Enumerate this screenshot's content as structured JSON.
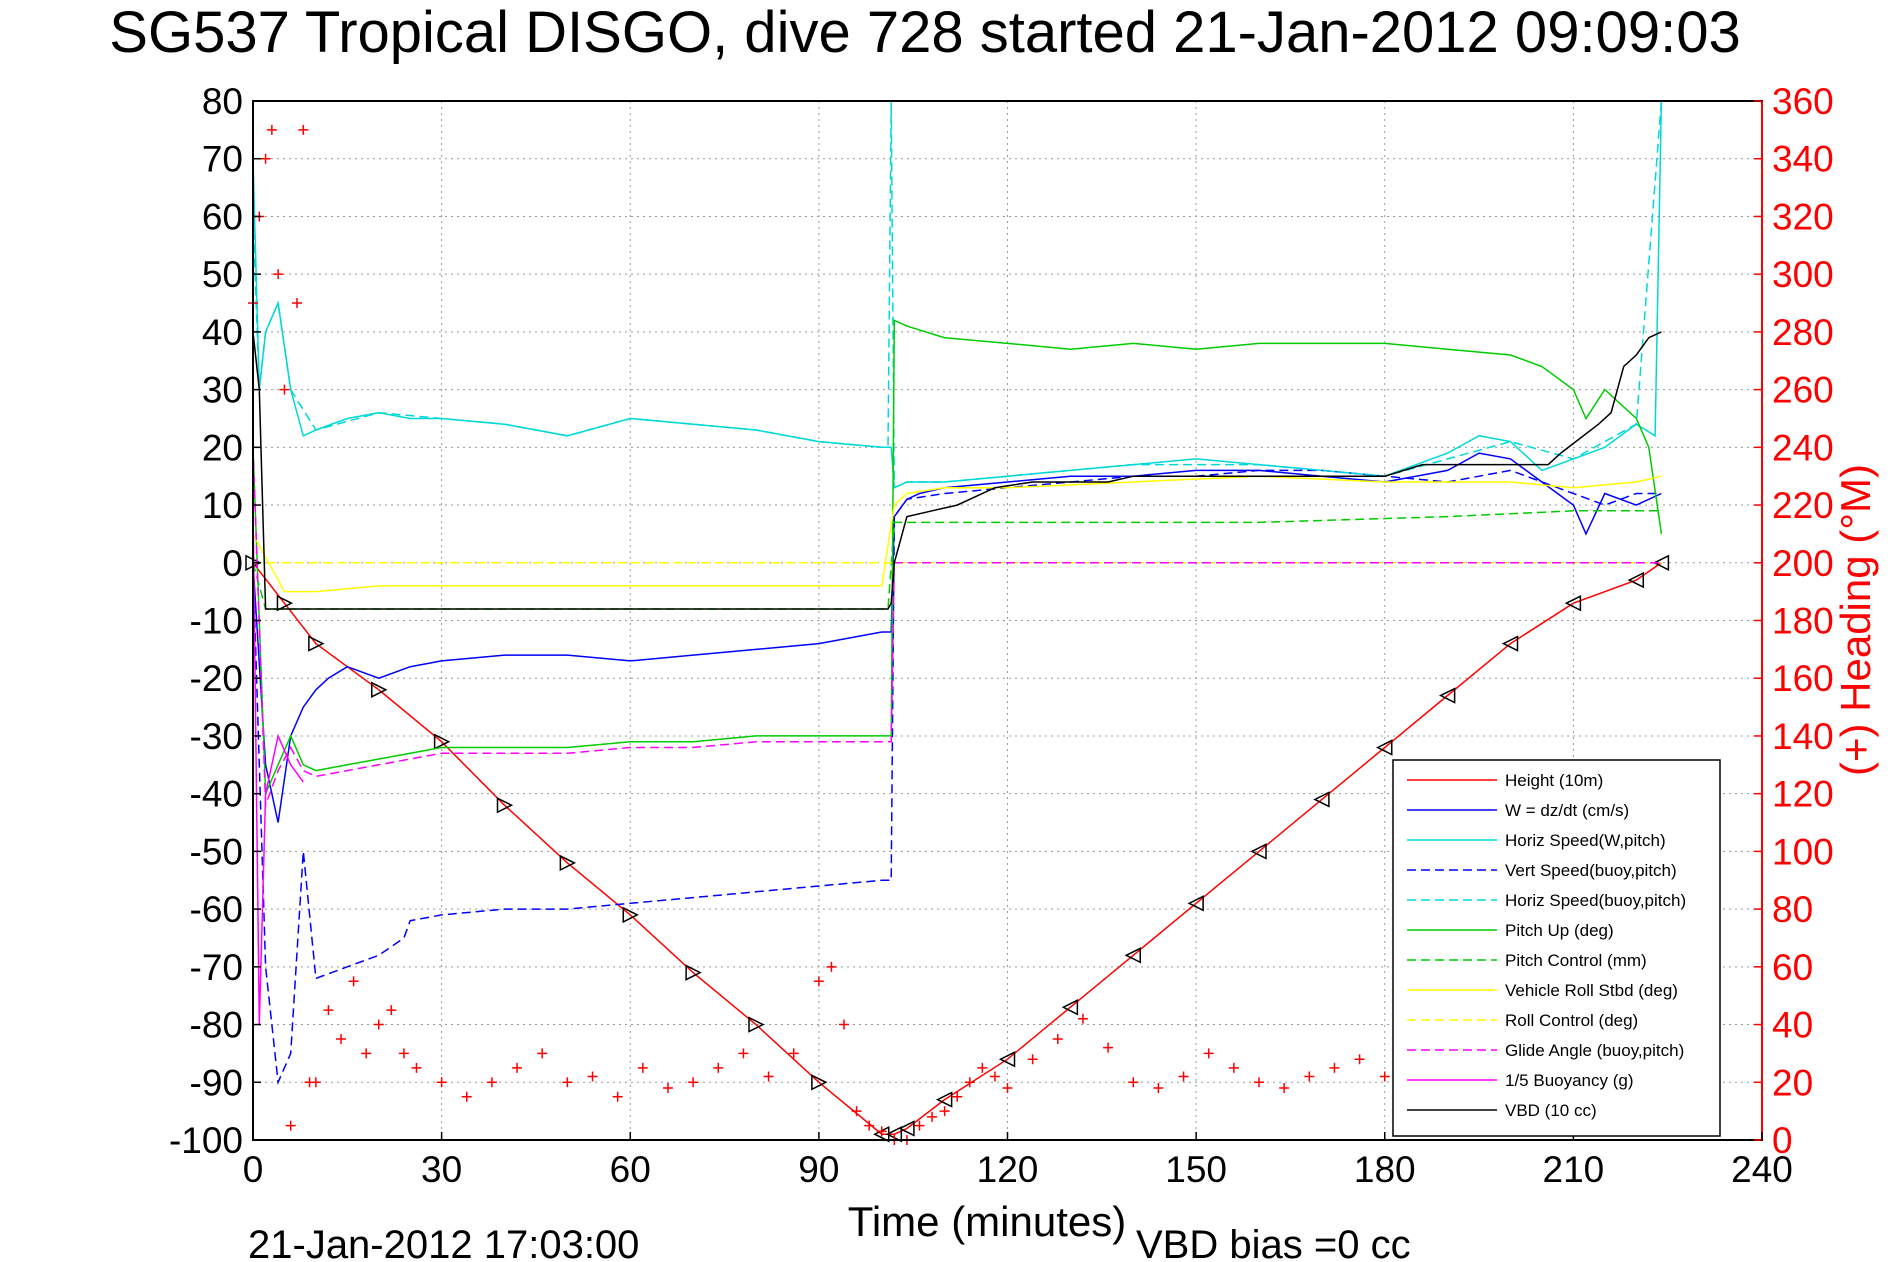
{
  "chart_data": {
    "type": "line",
    "title": "SG537 Tropical DISGO, dive 728 started 21-Jan-2012 09:09:03",
    "xlabel": "Time (minutes)",
    "ylabel_right": "(+) Heading (°M)",
    "footer_left": "21-Jan-2012 17:03:00",
    "footer_right": "VBD bias =0 cc",
    "xlim": [
      0,
      240
    ],
    "ylim": [
      -100,
      80
    ],
    "ylim_right": [
      0,
      360
    ],
    "xticks": [
      "0",
      "30",
      "60",
      "90",
      "120",
      "150",
      "180",
      "210",
      "240"
    ],
    "yticks": [
      "80",
      "70",
      "60",
      "50",
      "40",
      "30",
      "20",
      "10",
      "0",
      "-10",
      "-20",
      "-30",
      "-40",
      "-50",
      "-60",
      "-70",
      "-80",
      "-90",
      "-100"
    ],
    "yticks_right": [
      "360",
      "340",
      "320",
      "300",
      "280",
      "260",
      "240",
      "220",
      "200",
      "180",
      "160",
      "140",
      "120",
      "100",
      "80",
      "60",
      "40",
      "20",
      "0"
    ],
    "grid": true,
    "legend_position": "lower-right",
    "series": [
      {
        "name": "Height (10m)",
        "color": "#ff0000",
        "style": "solid",
        "x": [
          0,
          5,
          10,
          20,
          30,
          40,
          50,
          60,
          70,
          80,
          90,
          100,
          102,
          104,
          110,
          120,
          130,
          140,
          150,
          160,
          170,
          180,
          190,
          200,
          210,
          220,
          224
        ],
        "y": [
          0,
          -7,
          -14,
          -22,
          -31,
          -42,
          -52,
          -61,
          -71,
          -80,
          -90,
          -99,
          -99,
          -98,
          -93,
          -86,
          -77,
          -68,
          -59,
          -50,
          -41,
          -32,
          -23,
          -14,
          -7,
          -3,
          0
        ]
      },
      {
        "name": "W = dz/dt (cm/s)",
        "color": "#0000ff",
        "style": "solid",
        "x": [
          0,
          2,
          4,
          6,
          8,
          10,
          12,
          15,
          20,
          25,
          30,
          40,
          50,
          60,
          70,
          80,
          90,
          100,
          101.5,
          102,
          104,
          106,
          110,
          120,
          130,
          140,
          150,
          160,
          170,
          180,
          190,
          195,
          200,
          205,
          210,
          212,
          215,
          220,
          224
        ],
        "y": [
          0,
          -35,
          -45,
          -30,
          -25,
          -22,
          -20,
          -18,
          -20,
          -18,
          -17,
          -16,
          -16,
          -17,
          -16,
          -15,
          -14,
          -12,
          -12,
          8,
          11,
          12,
          13,
          14,
          15,
          15,
          16,
          16,
          15,
          14,
          16,
          19,
          18,
          14,
          10,
          5,
          12,
          10,
          12
        ]
      },
      {
        "name": "Horiz Speed(W,pitch)",
        "color": "#00d8d8",
        "style": "solid",
        "x": [
          0,
          1,
          2,
          4,
          6,
          8,
          10,
          15,
          20,
          25,
          30,
          40,
          50,
          60,
          70,
          80,
          90,
          100,
          101.5,
          102,
          104,
          110,
          120,
          130,
          140,
          150,
          160,
          170,
          180,
          190,
          195,
          200,
          205,
          210,
          215,
          220,
          223,
          224
        ],
        "y": [
          70,
          30,
          40,
          45,
          30,
          22,
          23,
          25,
          26,
          25,
          25,
          24,
          22,
          25,
          24,
          23,
          21,
          20,
          20,
          13,
          14,
          14,
          15,
          16,
          17,
          18,
          17,
          16,
          15,
          19,
          22,
          21,
          16,
          18,
          20,
          24,
          22,
          80
        ]
      },
      {
        "name": "Vert Speed(buoy,pitch)",
        "color": "#0000ff",
        "style": "dashed",
        "x": [
          0,
          2,
          4,
          6,
          8,
          10,
          15,
          20,
          24,
          25,
          30,
          40,
          50,
          60,
          70,
          80,
          90,
          100,
          101.5,
          102,
          104,
          110,
          120,
          130,
          140,
          150,
          160,
          170,
          180,
          190,
          200,
          210,
          215,
          220,
          224
        ],
        "y": [
          0,
          -70,
          -90,
          -85,
          -50,
          -72,
          -70,
          -68,
          -65,
          -62,
          -61,
          -60,
          -60,
          -59,
          -58,
          -57,
          -56,
          -55,
          -55,
          8,
          11,
          12,
          13,
          14,
          15,
          15,
          16,
          16,
          15,
          14,
          16,
          12,
          10,
          12,
          12
        ]
      },
      {
        "name": "Horiz Speed(buoy,pitch)",
        "color": "#00d8d8",
        "style": "dashed",
        "x": [
          0,
          1,
          2,
          4,
          6,
          10,
          20,
          30,
          40,
          50,
          60,
          70,
          80,
          90,
          100,
          101,
          101.5,
          102,
          104,
          110,
          120,
          140,
          160,
          180,
          200,
          210,
          220,
          224
        ],
        "y": [
          60,
          30,
          40,
          45,
          30,
          23,
          26,
          25,
          24,
          22,
          25,
          24,
          23,
          21,
          20,
          20,
          80,
          13,
          14,
          14,
          15,
          17,
          17,
          15,
          21,
          18,
          24,
          80
        ]
      },
      {
        "name": "Pitch Up (deg)",
        "color": "#00cc00",
        "style": "solid",
        "x": [
          0,
          2,
          4,
          6,
          8,
          10,
          15,
          20,
          25,
          30,
          40,
          50,
          60,
          70,
          80,
          90,
          100,
          101.5,
          102,
          104,
          110,
          120,
          130,
          140,
          150,
          160,
          170,
          180,
          190,
          200,
          205,
          210,
          212,
          215,
          220,
          222,
          224
        ],
        "y": [
          20,
          -40,
          -35,
          -30,
          -35,
          -36,
          -35,
          -34,
          -33,
          -32,
          -32,
          -32,
          -31,
          -31,
          -30,
          -30,
          -30,
          -30,
          42,
          41,
          39,
          38,
          37,
          38,
          37,
          38,
          38,
          38,
          37,
          36,
          34,
          30,
          25,
          30,
          25,
          20,
          5
        ]
      },
      {
        "name": "Pitch Control (mm)",
        "color": "#00cc00",
        "style": "dashed",
        "x": [
          0,
          2,
          6,
          101,
          102,
          104,
          130,
          160,
          190,
          210,
          224
        ],
        "y": [
          0,
          -8,
          -8,
          -8,
          7,
          7,
          7,
          7,
          8,
          9,
          9
        ]
      },
      {
        "name": "Vehicle Roll Stbd (deg)",
        "color": "#ffff00",
        "style": "solid",
        "x": [
          0,
          5,
          10,
          20,
          30,
          40,
          50,
          60,
          70,
          80,
          90,
          100,
          102,
          104,
          110,
          120,
          140,
          160,
          180,
          200,
          210,
          220,
          224
        ],
        "y": [
          5,
          -5,
          -5,
          -4,
          -4,
          -4,
          -4,
          -4,
          -4,
          -4,
          -4,
          -4,
          10,
          12,
          13,
          13,
          14,
          15,
          14,
          14,
          13,
          14,
          15
        ]
      },
      {
        "name": "Roll Control (deg)",
        "color": "#ffff00",
        "style": "dashed",
        "x": [
          0,
          5,
          100,
          101.5,
          102,
          224
        ],
        "y": [
          0,
          0,
          0,
          0,
          0,
          0
        ]
      },
      {
        "name": "Glide Angle (buoy,pitch)",
        "color": "#ff00ff",
        "style": "dashed",
        "x": [
          0,
          2,
          4,
          6,
          8,
          10,
          15,
          20,
          25,
          30,
          40,
          50,
          60,
          70,
          80,
          90,
          100,
          101.5,
          102,
          224
        ],
        "y": [
          20,
          -42,
          -36,
          -32,
          -36,
          -37,
          -36,
          -35,
          -34,
          -33,
          -33,
          -33,
          -32,
          -32,
          -31,
          -31,
          -31,
          -31,
          0,
          0
        ]
      },
      {
        "name": "1/5 Buoyancy (g)",
        "color": "#ff00ff",
        "style": "solid",
        "x": [
          0,
          1,
          2,
          4,
          6,
          8
        ],
        "y": [
          10,
          -80,
          -40,
          -30,
          -35,
          -38
        ]
      },
      {
        "name": "VBD (10 cc)",
        "color": "#000000",
        "style": "solid",
        "x": [
          0,
          1,
          2,
          10,
          30,
          60,
          90,
          101,
          101.5,
          102,
          104,
          108,
          112,
          118,
          124,
          136,
          140,
          150,
          160,
          170,
          180,
          186,
          190,
          200,
          206,
          208,
          214,
          216,
          218,
          220,
          222,
          224
        ],
        "y": [
          40,
          30,
          -8,
          -8,
          -8,
          -8,
          -8,
          -8,
          -7,
          0,
          8,
          9,
          10,
          13,
          14,
          14,
          15,
          15,
          15,
          15,
          15,
          17,
          17,
          17,
          17,
          19,
          24,
          26,
          34,
          36,
          39,
          40
        ]
      },
      {
        "name": "Heading",
        "color": "#ff0000",
        "style": "markers",
        "axis": "right",
        "x": [
          0,
          1,
          2,
          3,
          4,
          5,
          6,
          7,
          8,
          9,
          10,
          12,
          14,
          16,
          18,
          20,
          22,
          24,
          26,
          30,
          34,
          38,
          42,
          46,
          50,
          54,
          58,
          62,
          66,
          70,
          74,
          78,
          82,
          86,
          90,
          92,
          94,
          96,
          98,
          100,
          102,
          104,
          106,
          108,
          110,
          112,
          114,
          116,
          118,
          120,
          124,
          128,
          132,
          136,
          140,
          144,
          148,
          152,
          156,
          160,
          164,
          168,
          172,
          176,
          180,
          184,
          188,
          192,
          196,
          200,
          202,
          204,
          206,
          208,
          210,
          212,
          214,
          216,
          218,
          220,
          222,
          224
        ],
        "y": [
          290,
          320,
          340,
          350,
          300,
          260,
          5,
          290,
          350,
          20,
          20,
          45,
          35,
          55,
          30,
          40,
          45,
          30,
          25,
          20,
          15,
          20,
          25,
          30,
          20,
          22,
          15,
          25,
          18,
          20,
          25,
          30,
          22,
          30,
          55,
          60,
          40,
          10,
          5,
          3,
          0,
          0,
          5,
          8,
          10,
          15,
          20,
          25,
          22,
          18,
          28,
          35,
          42,
          32,
          20,
          18,
          22,
          30,
          25,
          20,
          18,
          22,
          25,
          28,
          22,
          18,
          25,
          30,
          20,
          15,
          10,
          8,
          5,
          12,
          18,
          24,
          30,
          35,
          40,
          30,
          25,
          20
        ]
      }
    ]
  }
}
